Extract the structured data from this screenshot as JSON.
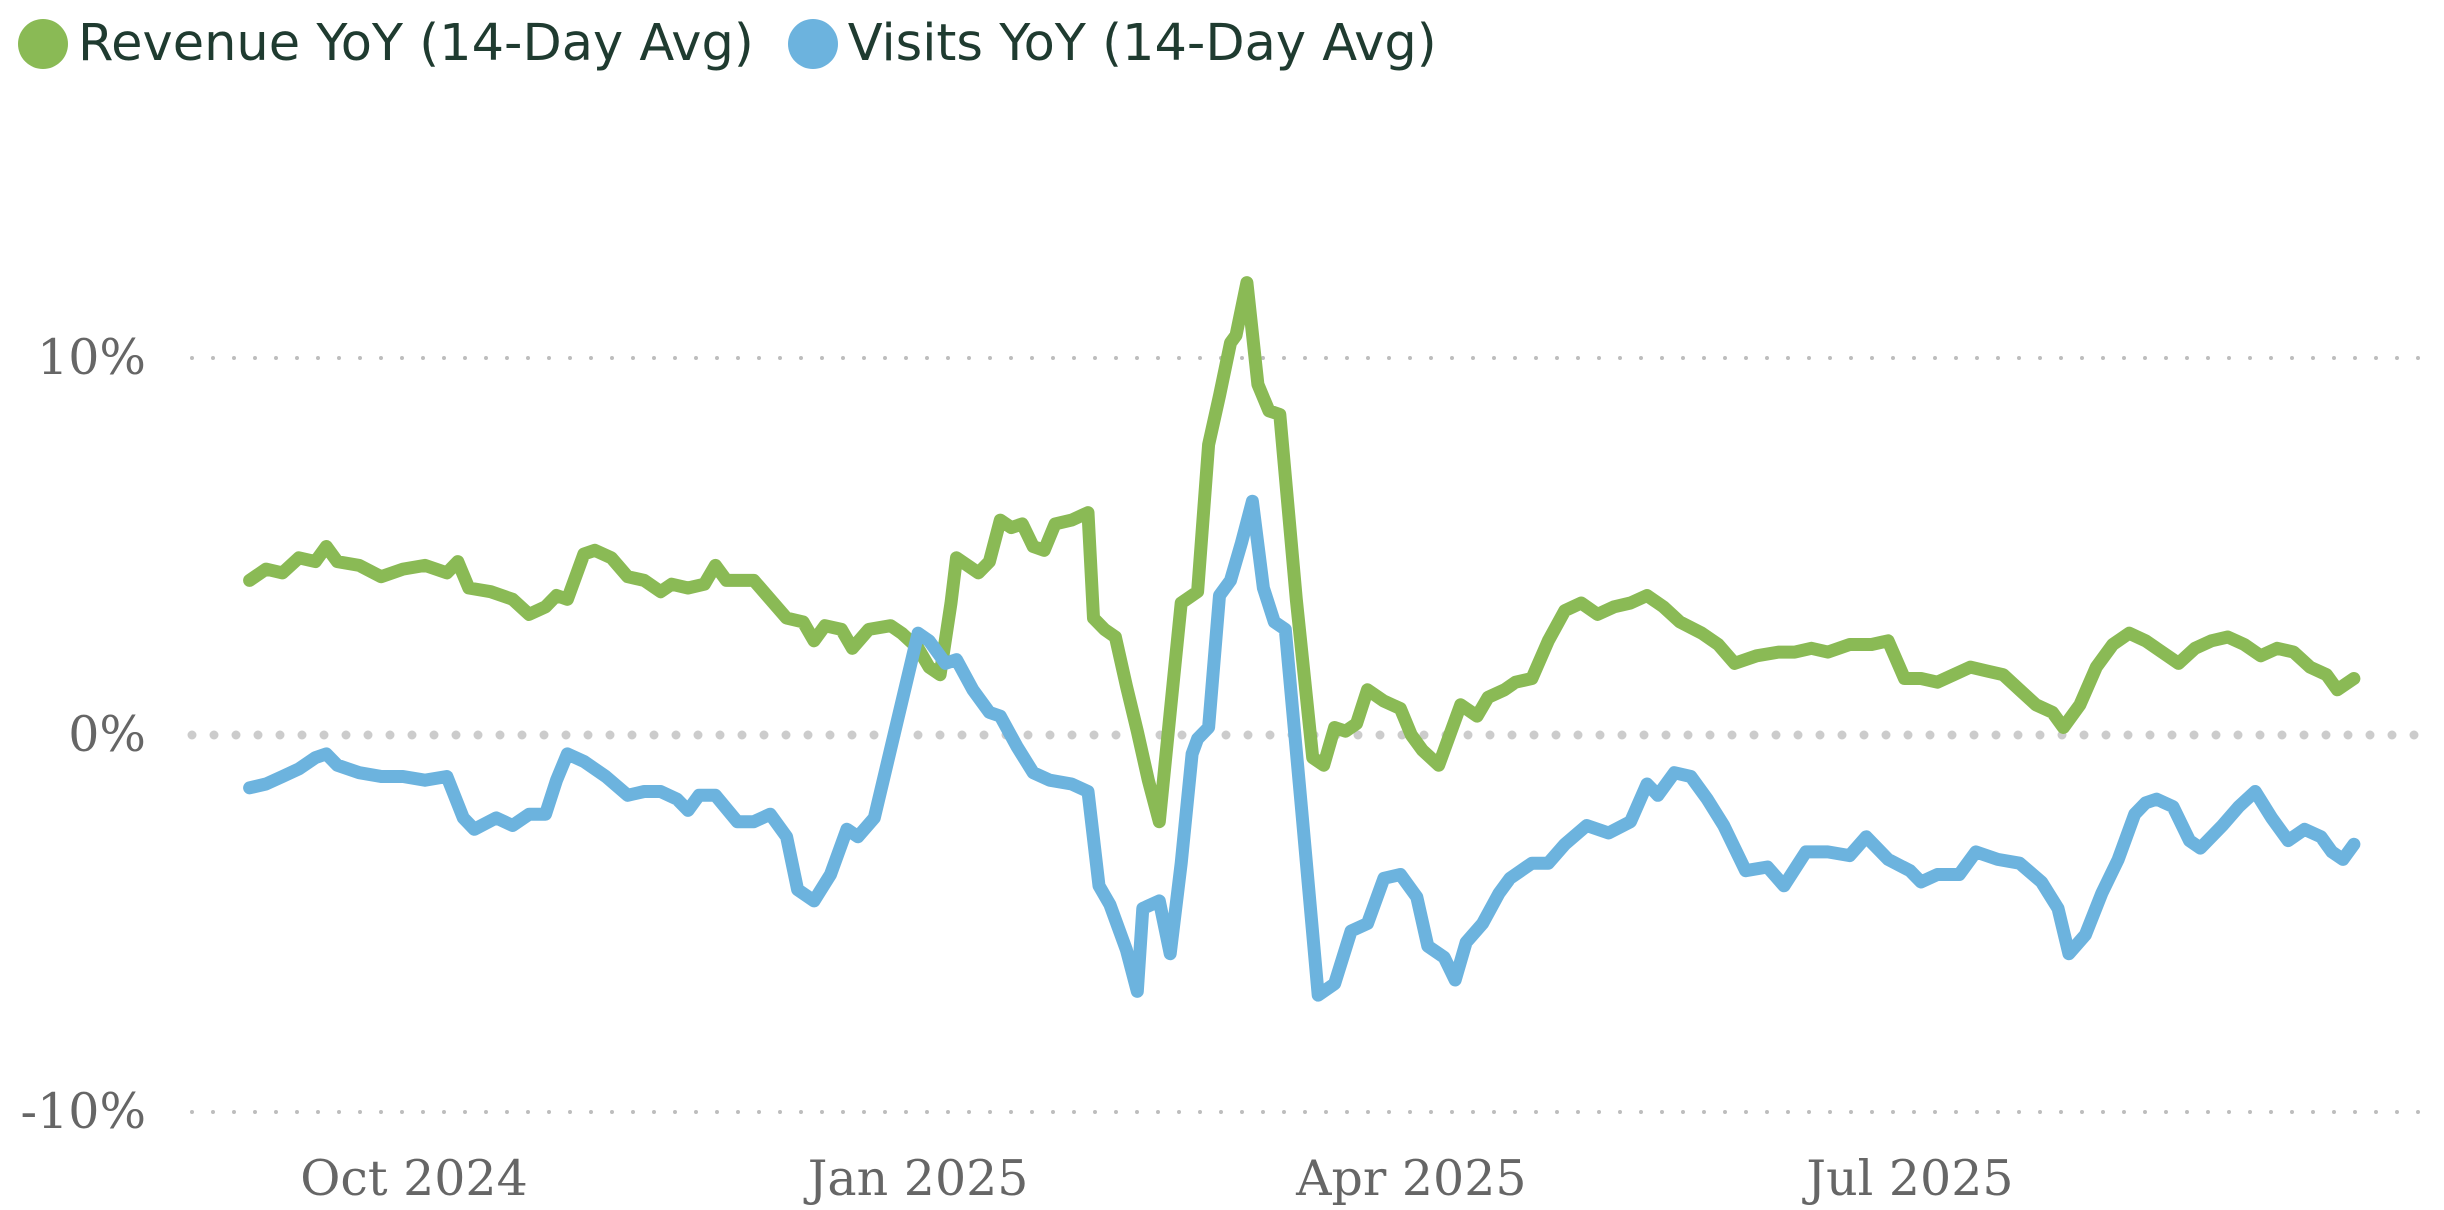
{
  "chart_data": {
    "type": "line",
    "title": "",
    "xlabel": "",
    "ylabel": "",
    "x_type": "date",
    "x_range": [
      "2024-08-29",
      "2025-09-20"
    ],
    "ylim": [
      -10,
      14
    ],
    "y_unit": "%",
    "y_ticks": [
      {
        "value": 10,
        "label": "10%"
      },
      {
        "value": 0,
        "label": "0%"
      },
      {
        "value": -10,
        "label": "-10%"
      }
    ],
    "x_ticks": [
      {
        "date": "2024-10-01",
        "label": "Oct 2024"
      },
      {
        "date": "2025-01-01",
        "label": "Jan 2025"
      },
      {
        "date": "2025-04-01",
        "label": "Apr 2025"
      },
      {
        "date": "2025-07-01",
        "label": "Jul 2025"
      }
    ],
    "grid": "horizontal dotted",
    "legend_position": "top-left",
    "series": [
      {
        "name": "Revenue YoY (14-Day Avg)",
        "color": "#8aba55",
        "points": [
          [
            "2024-09-01",
            4.1
          ],
          [
            "2024-09-04",
            4.4
          ],
          [
            "2024-09-07",
            4.3
          ],
          [
            "2024-09-10",
            4.7
          ],
          [
            "2024-09-13",
            4.6
          ],
          [
            "2024-09-15",
            5.0
          ],
          [
            "2024-09-17",
            4.6
          ],
          [
            "2024-09-21",
            4.5
          ],
          [
            "2024-09-25",
            4.2
          ],
          [
            "2024-09-29",
            4.4
          ],
          [
            "2024-10-03",
            4.5
          ],
          [
            "2024-10-07",
            4.3
          ],
          [
            "2024-10-09",
            4.6
          ],
          [
            "2024-10-11",
            3.9
          ],
          [
            "2024-10-15",
            3.8
          ],
          [
            "2024-10-19",
            3.6
          ],
          [
            "2024-10-22",
            3.2
          ],
          [
            "2024-10-25",
            3.4
          ],
          [
            "2024-10-27",
            3.7
          ],
          [
            "2024-10-29",
            3.6
          ],
          [
            "2024-11-01",
            4.8
          ],
          [
            "2024-11-03",
            4.9
          ],
          [
            "2024-11-06",
            4.7
          ],
          [
            "2024-11-09",
            4.2
          ],
          [
            "2024-11-12",
            4.1
          ],
          [
            "2024-11-15",
            3.8
          ],
          [
            "2024-11-17",
            4.0
          ],
          [
            "2024-11-20",
            3.9
          ],
          [
            "2024-11-23",
            4.0
          ],
          [
            "2024-11-25",
            4.5
          ],
          [
            "2024-11-27",
            4.1
          ],
          [
            "2024-12-02",
            4.1
          ],
          [
            "2024-12-05",
            3.6
          ],
          [
            "2024-12-08",
            3.1
          ],
          [
            "2024-12-11",
            3.0
          ],
          [
            "2024-12-13",
            2.5
          ],
          [
            "2024-12-15",
            2.9
          ],
          [
            "2024-12-18",
            2.8
          ],
          [
            "2024-12-20",
            2.3
          ],
          [
            "2024-12-23",
            2.8
          ],
          [
            "2024-12-27",
            2.9
          ],
          [
            "2024-12-29",
            2.7
          ],
          [
            "2025-01-01",
            2.3
          ],
          [
            "2025-01-03",
            1.8
          ],
          [
            "2025-01-05",
            1.6
          ],
          [
            "2025-01-07",
            3.5
          ],
          [
            "2025-01-08",
            4.7
          ],
          [
            "2025-01-10",
            4.5
          ],
          [
            "2025-01-12",
            4.3
          ],
          [
            "2025-01-14",
            4.6
          ],
          [
            "2025-01-16",
            5.7
          ],
          [
            "2025-01-18",
            5.5
          ],
          [
            "2025-01-20",
            5.6
          ],
          [
            "2025-01-22",
            5.0
          ],
          [
            "2025-01-24",
            4.9
          ],
          [
            "2025-01-26",
            5.6
          ],
          [
            "2025-01-29",
            5.7
          ],
          [
            "2025-02-01",
            5.9
          ],
          [
            "2025-02-02",
            3.1
          ],
          [
            "2025-02-04",
            2.8
          ],
          [
            "2025-02-06",
            2.6
          ],
          [
            "2025-02-08",
            1.3
          ],
          [
            "2025-02-10",
            0.1
          ],
          [
            "2025-02-12",
            -1.2
          ],
          [
            "2025-02-14",
            -2.3
          ],
          [
            "2025-02-16",
            0.6
          ],
          [
            "2025-02-18",
            3.5
          ],
          [
            "2025-02-21",
            3.8
          ],
          [
            "2025-02-23",
            7.7
          ],
          [
            "2025-02-25",
            9.0
          ],
          [
            "2025-02-27",
            10.4
          ],
          [
            "2025-02-28",
            10.6
          ],
          [
            "2025-03-02",
            12.0
          ],
          [
            "2025-03-04",
            9.3
          ],
          [
            "2025-03-06",
            8.6
          ],
          [
            "2025-03-08",
            8.5
          ],
          [
            "2025-03-11",
            3.6
          ],
          [
            "2025-03-14",
            -0.6
          ],
          [
            "2025-03-16",
            -0.8
          ],
          [
            "2025-03-18",
            0.2
          ],
          [
            "2025-03-20",
            0.1
          ],
          [
            "2025-03-22",
            0.3
          ],
          [
            "2025-03-24",
            1.2
          ],
          [
            "2025-03-27",
            0.9
          ],
          [
            "2025-03-30",
            0.7
          ],
          [
            "2025-04-01",
            0.0
          ],
          [
            "2025-04-03",
            -0.4
          ],
          [
            "2025-04-06",
            -0.8
          ],
          [
            "2025-04-08",
            0.0
          ],
          [
            "2025-04-10",
            0.8
          ],
          [
            "2025-04-13",
            0.5
          ],
          [
            "2025-04-15",
            1.0
          ],
          [
            "2025-04-18",
            1.2
          ],
          [
            "2025-04-20",
            1.4
          ],
          [
            "2025-04-23",
            1.5
          ],
          [
            "2025-04-26",
            2.5
          ],
          [
            "2025-04-29",
            3.3
          ],
          [
            "2025-05-02",
            3.5
          ],
          [
            "2025-05-05",
            3.2
          ],
          [
            "2025-05-08",
            3.4
          ],
          [
            "2025-05-11",
            3.5
          ],
          [
            "2025-05-14",
            3.7
          ],
          [
            "2025-05-17",
            3.4
          ],
          [
            "2025-05-20",
            3.0
          ],
          [
            "2025-05-24",
            2.7
          ],
          [
            "2025-05-27",
            2.4
          ],
          [
            "2025-05-30",
            1.9
          ],
          [
            "2025-06-03",
            2.1
          ],
          [
            "2025-06-07",
            2.2
          ],
          [
            "2025-06-10",
            2.2
          ],
          [
            "2025-06-13",
            2.3
          ],
          [
            "2025-06-16",
            2.2
          ],
          [
            "2025-06-20",
            2.4
          ],
          [
            "2025-06-24",
            2.4
          ],
          [
            "2025-06-27",
            2.5
          ],
          [
            "2025-06-30",
            1.5
          ],
          [
            "2025-07-03",
            1.5
          ],
          [
            "2025-07-06",
            1.4
          ],
          [
            "2025-07-09",
            1.6
          ],
          [
            "2025-07-12",
            1.8
          ],
          [
            "2025-07-15",
            1.7
          ],
          [
            "2025-07-18",
            1.6
          ],
          [
            "2025-07-21",
            1.2
          ],
          [
            "2025-07-24",
            0.8
          ],
          [
            "2025-07-27",
            0.6
          ],
          [
            "2025-07-29",
            0.2
          ],
          [
            "2025-08-01",
            0.8
          ],
          [
            "2025-08-04",
            1.8
          ],
          [
            "2025-08-07",
            2.4
          ],
          [
            "2025-08-10",
            2.7
          ],
          [
            "2025-08-13",
            2.5
          ],
          [
            "2025-08-16",
            2.2
          ],
          [
            "2025-08-19",
            1.9
          ],
          [
            "2025-08-22",
            2.3
          ],
          [
            "2025-08-25",
            2.5
          ],
          [
            "2025-08-28",
            2.6
          ],
          [
            "2025-08-31",
            2.4
          ],
          [
            "2025-09-03",
            2.1
          ],
          [
            "2025-09-06",
            2.3
          ],
          [
            "2025-09-09",
            2.2
          ],
          [
            "2025-09-12",
            1.8
          ],
          [
            "2025-09-15",
            1.6
          ],
          [
            "2025-09-17",
            1.2
          ],
          [
            "2025-09-20",
            1.5
          ]
        ]
      },
      {
        "name": "Visits YoY (14-Day Avg)",
        "color": "#6cb3de",
        "points": [
          [
            "2024-09-01",
            -1.4
          ],
          [
            "2024-09-04",
            -1.3
          ],
          [
            "2024-09-07",
            -1.1
          ],
          [
            "2024-09-10",
            -0.9
          ],
          [
            "2024-09-13",
            -0.6
          ],
          [
            "2024-09-15",
            -0.5
          ],
          [
            "2024-09-17",
            -0.8
          ],
          [
            "2024-09-21",
            -1.0
          ],
          [
            "2024-09-25",
            -1.1
          ],
          [
            "2024-09-29",
            -1.1
          ],
          [
            "2024-10-03",
            -1.2
          ],
          [
            "2024-10-07",
            -1.1
          ],
          [
            "2024-10-10",
            -2.2
          ],
          [
            "2024-10-12",
            -2.5
          ],
          [
            "2024-10-16",
            -2.2
          ],
          [
            "2024-10-19",
            -2.4
          ],
          [
            "2024-10-22",
            -2.1
          ],
          [
            "2024-10-25",
            -2.1
          ],
          [
            "2024-10-27",
            -1.2
          ],
          [
            "2024-10-29",
            -0.5
          ],
          [
            "2024-11-01",
            -0.7
          ],
          [
            "2024-11-05",
            -1.1
          ],
          [
            "2024-11-09",
            -1.6
          ],
          [
            "2024-11-12",
            -1.5
          ],
          [
            "2024-11-15",
            -1.5
          ],
          [
            "2024-11-18",
            -1.7
          ],
          [
            "2024-11-20",
            -2.0
          ],
          [
            "2024-11-22",
            -1.6
          ],
          [
            "2024-11-25",
            -1.6
          ],
          [
            "2024-11-29",
            -2.3
          ],
          [
            "2024-12-02",
            -2.3
          ],
          [
            "2024-12-05",
            -2.1
          ],
          [
            "2024-12-08",
            -2.7
          ],
          [
            "2024-12-10",
            -4.1
          ],
          [
            "2024-12-13",
            -4.4
          ],
          [
            "2024-12-16",
            -3.7
          ],
          [
            "2024-12-19",
            -2.5
          ],
          [
            "2024-12-21",
            -2.7
          ],
          [
            "2024-12-24",
            -2.2
          ],
          [
            "2025-01-01",
            2.7
          ],
          [
            "2025-01-03",
            2.5
          ],
          [
            "2025-01-06",
            1.9
          ],
          [
            "2025-01-08",
            2.0
          ],
          [
            "2025-01-11",
            1.2
          ],
          [
            "2025-01-14",
            0.6
          ],
          [
            "2025-01-16",
            0.5
          ],
          [
            "2025-01-19",
            -0.3
          ],
          [
            "2025-01-22",
            -1.0
          ],
          [
            "2025-01-25",
            -1.2
          ],
          [
            "2025-01-29",
            -1.3
          ],
          [
            "2025-02-01",
            -1.5
          ],
          [
            "2025-02-03",
            -4.0
          ],
          [
            "2025-02-05",
            -4.5
          ],
          [
            "2025-02-08",
            -5.7
          ],
          [
            "2025-02-10",
            -6.8
          ],
          [
            "2025-02-11",
            -4.6
          ],
          [
            "2025-02-14",
            -4.4
          ],
          [
            "2025-02-16",
            -5.8
          ],
          [
            "2025-02-18",
            -3.4
          ],
          [
            "2025-02-20",
            -0.5
          ],
          [
            "2025-02-21",
            -0.1
          ],
          [
            "2025-02-23",
            0.2
          ],
          [
            "2025-02-25",
            3.7
          ],
          [
            "2025-02-27",
            4.1
          ],
          [
            "2025-03-01",
            5.1
          ],
          [
            "2025-03-03",
            6.2
          ],
          [
            "2025-03-05",
            3.9
          ],
          [
            "2025-03-07",
            3.0
          ],
          [
            "2025-03-09",
            2.8
          ],
          [
            "2025-03-12",
            -2.0
          ],
          [
            "2025-03-15",
            -6.9
          ],
          [
            "2025-03-18",
            -6.6
          ],
          [
            "2025-03-21",
            -5.2
          ],
          [
            "2025-03-24",
            -5.0
          ],
          [
            "2025-03-27",
            -3.8
          ],
          [
            "2025-03-30",
            -3.7
          ],
          [
            "2025-04-02",
            -4.3
          ],
          [
            "2025-04-04",
            -5.6
          ],
          [
            "2025-04-07",
            -5.9
          ],
          [
            "2025-04-09",
            -6.5
          ],
          [
            "2025-04-11",
            -5.5
          ],
          [
            "2025-04-14",
            -5.0
          ],
          [
            "2025-04-17",
            -4.2
          ],
          [
            "2025-04-19",
            -3.8
          ],
          [
            "2025-04-23",
            -3.4
          ],
          [
            "2025-04-26",
            -3.4
          ],
          [
            "2025-04-29",
            -2.9
          ],
          [
            "2025-05-03",
            -2.4
          ],
          [
            "2025-05-07",
            -2.6
          ],
          [
            "2025-05-11",
            -2.3
          ],
          [
            "2025-05-14",
            -1.3
          ],
          [
            "2025-05-16",
            -1.6
          ],
          [
            "2025-05-19",
            -1.0
          ],
          [
            "2025-05-22",
            -1.1
          ],
          [
            "2025-05-25",
            -1.7
          ],
          [
            "2025-05-28",
            -2.4
          ],
          [
            "2025-06-01",
            -3.6
          ],
          [
            "2025-06-05",
            -3.5
          ],
          [
            "2025-06-08",
            -4.0
          ],
          [
            "2025-06-12",
            -3.1
          ],
          [
            "2025-06-16",
            -3.1
          ],
          [
            "2025-06-20",
            -3.2
          ],
          [
            "2025-06-23",
            -2.7
          ],
          [
            "2025-06-27",
            -3.3
          ],
          [
            "2025-07-01",
            -3.6
          ],
          [
            "2025-07-03",
            -3.9
          ],
          [
            "2025-07-06",
            -3.7
          ],
          [
            "2025-07-10",
            -3.7
          ],
          [
            "2025-07-13",
            -3.1
          ],
          [
            "2025-07-17",
            -3.3
          ],
          [
            "2025-07-21",
            -3.4
          ],
          [
            "2025-07-25",
            -3.9
          ],
          [
            "2025-07-28",
            -4.6
          ],
          [
            "2025-07-30",
            -5.8
          ],
          [
            "2025-08-02",
            -5.3
          ],
          [
            "2025-08-05",
            -4.2
          ],
          [
            "2025-08-08",
            -3.3
          ],
          [
            "2025-08-11",
            -2.1
          ],
          [
            "2025-08-13",
            -1.8
          ],
          [
            "2025-08-15",
            -1.7
          ],
          [
            "2025-08-18",
            -1.9
          ],
          [
            "2025-08-21",
            -2.8
          ],
          [
            "2025-08-23",
            -3.0
          ],
          [
            "2025-08-27",
            -2.4
          ],
          [
            "2025-08-30",
            -1.9
          ],
          [
            "2025-09-02",
            -1.5
          ],
          [
            "2025-09-05",
            -2.2
          ],
          [
            "2025-09-08",
            -2.8
          ],
          [
            "2025-09-11",
            -2.5
          ],
          [
            "2025-09-14",
            -2.7
          ],
          [
            "2025-09-16",
            -3.1
          ],
          [
            "2025-09-18",
            -3.3
          ],
          [
            "2025-09-20",
            -2.9
          ]
        ]
      }
    ]
  }
}
